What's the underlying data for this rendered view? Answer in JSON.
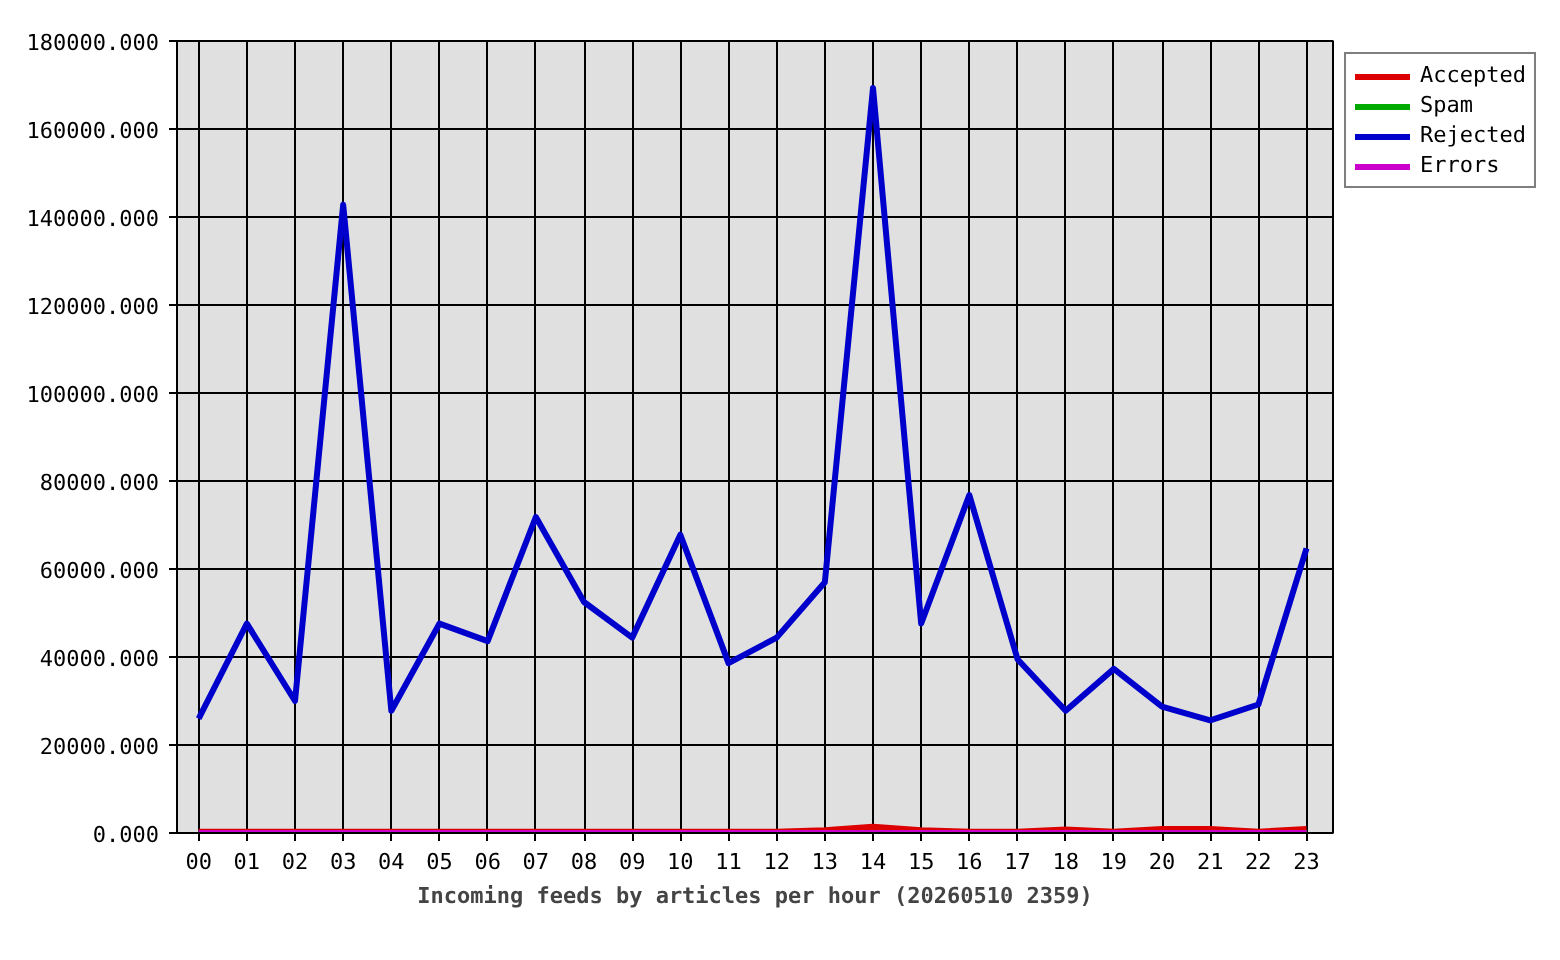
{
  "chart_data": {
    "type": "line",
    "xlabel": "Incoming feeds by articles per hour (20260510 2359)",
    "categories": [
      "00",
      "01",
      "02",
      "03",
      "04",
      "05",
      "06",
      "07",
      "08",
      "09",
      "10",
      "11",
      "12",
      "13",
      "14",
      "15",
      "16",
      "17",
      "18",
      "19",
      "20",
      "21",
      "22",
      "23"
    ],
    "series": [
      {
        "name": "Accepted",
        "color": "#dd0000",
        "values": [
          300,
          300,
          300,
          300,
          300,
          300,
          300,
          300,
          300,
          300,
          300,
          300,
          300,
          600,
          1400,
          600,
          300,
          300,
          800,
          300,
          900,
          900,
          300,
          900
        ]
      },
      {
        "name": "Spam",
        "color": "#00aa00",
        "values": [
          null,
          null,
          null,
          null,
          null,
          null,
          null,
          null,
          null,
          null,
          null,
          null,
          null,
          null,
          null,
          null,
          null,
          null,
          null,
          null,
          null,
          null,
          null,
          null
        ]
      },
      {
        "name": "Rejected",
        "color": "#0000cc",
        "values": [
          26000,
          47600,
          30000,
          142800,
          27800,
          47600,
          43600,
          71800,
          52500,
          44400,
          67800,
          38600,
          44400,
          57000,
          169300,
          47600,
          76800,
          39500,
          27800,
          37300,
          28700,
          25600,
          29200,
          64700
        ]
      },
      {
        "name": "Errors",
        "color": "#cc00cc",
        "values": [
          0,
          0,
          0,
          0,
          0,
          0,
          0,
          0,
          0,
          0,
          0,
          0,
          0,
          0,
          0,
          0,
          0,
          0,
          0,
          0,
          0,
          0,
          0,
          0
        ]
      }
    ],
    "ylim": [
      0,
      180000
    ],
    "yticks": [
      {
        "value": 0,
        "label": "0.000"
      },
      {
        "value": 20000,
        "label": "20000.000"
      },
      {
        "value": 40000,
        "label": "40000.000"
      },
      {
        "value": 60000,
        "label": "60000.000"
      },
      {
        "value": 80000,
        "label": "80000.000"
      },
      {
        "value": 100000,
        "label": "100000.000"
      },
      {
        "value": 120000,
        "label": "120000.000"
      },
      {
        "value": 140000,
        "label": "140000.000"
      },
      {
        "value": 160000,
        "label": "160000.000"
      },
      {
        "value": 180000,
        "label": "180000.000"
      }
    ],
    "grid": true,
    "legend": "right",
    "line_style": "solid"
  }
}
